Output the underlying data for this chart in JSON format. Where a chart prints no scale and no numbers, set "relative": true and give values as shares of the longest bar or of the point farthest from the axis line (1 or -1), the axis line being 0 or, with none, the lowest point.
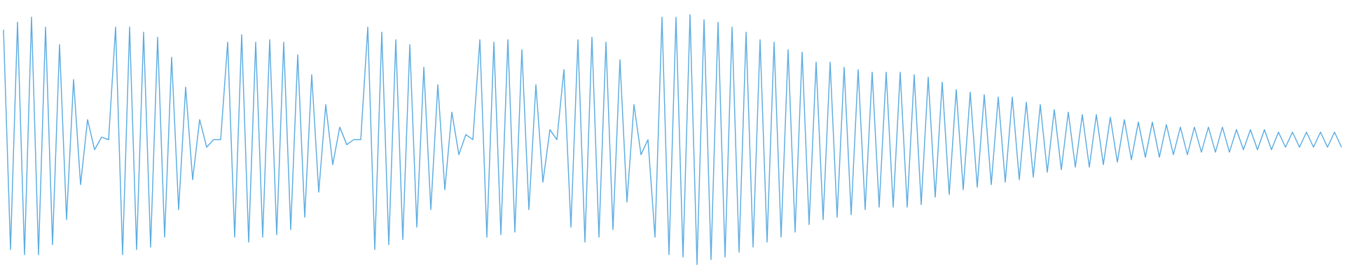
{
  "chart_data": {
    "type": "line",
    "relative": true,
    "color": "#5dade2",
    "categories": [
      null,
      null,
      null,
      null,
      null,
      null,
      null,
      null,
      null,
      null,
      null,
      null,
      null,
      null,
      null,
      null,
      null,
      null,
      null,
      null,
      null,
      null,
      null,
      null,
      null,
      null,
      null,
      null,
      null,
      null,
      null,
      null,
      null,
      null,
      null,
      null,
      null,
      null,
      null,
      null,
      null,
      null,
      null,
      null,
      null,
      null,
      null,
      null,
      null,
      null,
      null,
      null,
      null,
      null,
      null,
      null,
      null,
      null,
      null,
      null,
      null,
      null,
      null,
      null,
      null,
      null,
      null,
      null,
      null,
      null,
      null,
      null,
      null,
      null,
      null,
      null,
      null,
      null,
      null,
      null,
      null,
      null,
      null,
      null,
      null,
      null,
      null,
      null,
      null,
      null,
      null,
      null,
      null,
      null,
      null,
      null,
      null,
      null,
      null,
      null,
      null,
      null,
      null,
      null,
      null,
      null,
      null,
      null,
      null,
      null,
      null,
      null,
      null,
      null,
      null,
      null,
      null,
      null,
      null,
      null,
      null,
      null,
      null,
      null,
      null,
      null,
      null,
      null,
      null,
      null,
      null,
      null,
      null,
      null,
      null,
      null,
      null,
      null,
      null,
      null,
      null,
      null,
      null,
      null,
      null,
      null,
      null,
      null,
      null,
      null,
      null,
      null,
      null,
      null,
      null,
      null,
      null,
      null,
      null,
      null,
      null,
      null,
      null,
      null,
      null,
      null,
      null,
      null,
      null,
      null,
      null,
      null,
      null,
      null,
      null,
      null,
      null,
      null,
      null,
      null,
      null,
      null,
      null,
      null,
      null,
      null,
      null,
      null,
      null,
      null,
      null,
      null
    ],
    "values": [
      0.94,
      0.06,
      0.97,
      0.04,
      0.99,
      0.04,
      0.95,
      0.08,
      0.88,
      0.18,
      0.74,
      0.32,
      0.58,
      0.46,
      0.51,
      0.5,
      0.95,
      0.04,
      0.95,
      0.06,
      0.93,
      0.07,
      0.91,
      0.11,
      0.83,
      0.22,
      0.71,
      0.34,
      0.58,
      0.47,
      0.5,
      0.5,
      0.89,
      0.11,
      0.92,
      0.09,
      0.89,
      0.11,
      0.9,
      0.12,
      0.89,
      0.14,
      0.84,
      0.19,
      0.76,
      0.29,
      0.64,
      0.4,
      0.55,
      0.48,
      0.5,
      0.5,
      0.95,
      0.06,
      0.93,
      0.08,
      0.9,
      0.1,
      0.88,
      0.15,
      0.79,
      0.22,
      0.72,
      0.3,
      0.61,
      0.44,
      0.52,
      0.5,
      0.9,
      0.11,
      0.89,
      0.12,
      0.9,
      0.13,
      0.86,
      0.22,
      0.72,
      0.33,
      0.54,
      0.5,
      0.78,
      0.15,
      0.9,
      0.09,
      0.91,
      0.11,
      0.89,
      0.14,
      0.82,
      0.25,
      0.64,
      0.44,
      0.5,
      0.11,
      0.99,
      0.04,
      0.99,
      0.03,
      1.0,
      0.0,
      0.98,
      0.02,
      0.97,
      0.03,
      0.95,
      0.05,
      0.93,
      0.07,
      0.9,
      0.09,
      0.89,
      0.11,
      0.86,
      0.13,
      0.85,
      0.16,
      0.81,
      0.18,
      0.81,
      0.19,
      0.79,
      0.2,
      0.78,
      0.22,
      0.77,
      0.23,
      0.77,
      0.23,
      0.77,
      0.23,
      0.76,
      0.24,
      0.75,
      0.27,
      0.73,
      0.28,
      0.7,
      0.3,
      0.69,
      0.31,
      0.68,
      0.32,
      0.67,
      0.33,
      0.67,
      0.34,
      0.65,
      0.35,
      0.64,
      0.37,
      0.62,
      0.38,
      0.61,
      0.39,
      0.6,
      0.39,
      0.6,
      0.4,
      0.59,
      0.41,
      0.58,
      0.42,
      0.57,
      0.43,
      0.57,
      0.43,
      0.56,
      0.44,
      0.55,
      0.44,
      0.55,
      0.45,
      0.55,
      0.45,
      0.55,
      0.45,
      0.54,
      0.46,
      0.54,
      0.46,
      0.54,
      0.46,
      0.53,
      0.47,
      0.53,
      0.47,
      0.53,
      0.47,
      0.53,
      0.47,
      0.53,
      0.47
    ]
  }
}
